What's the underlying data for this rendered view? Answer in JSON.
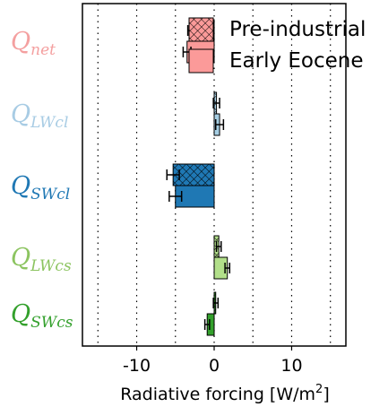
{
  "chart_data": {
    "type": "bar",
    "orientation": "horizontal",
    "title": "",
    "xlabel": "Radiative forcing [W/m",
    "xlabel_sup": "2",
    "xlabel_end": "]",
    "xlim": [
      -17,
      17
    ],
    "xticks": [
      -10,
      0,
      10
    ],
    "xtick_labels": [
      "-10",
      "0",
      "10"
    ],
    "grid_x": [
      -15,
      -10,
      -5,
      0,
      5,
      10,
      15
    ],
    "grid": "vertical dotted",
    "legend_position": "top-right",
    "categories": [
      {
        "main": "Q",
        "sub": "net",
        "color": "#f4a0a0"
      },
      {
        "main": "Q",
        "sub": "LWcl",
        "color": "#a8cce4"
      },
      {
        "main": "Q",
        "sub": "SWcl",
        "color": "#1f78b4"
      },
      {
        "main": "Q",
        "sub": "LWcs",
        "color": "#8cc460"
      },
      {
        "main": "Q",
        "sub": "SWcs",
        "color": "#33a02c"
      }
    ],
    "series": [
      {
        "name": "Pre-industrial",
        "hatch": "cross",
        "values": [
          -3.0,
          0.3,
          -5.3,
          0.6,
          0.2
        ],
        "errors": [
          0.4,
          0.4,
          0.8,
          0.3,
          0.3
        ]
      },
      {
        "name": "Early Eocene",
        "hatch": "none",
        "values": [
          -3.5,
          0.7,
          -5.0,
          1.7,
          -0.9
        ],
        "errors": [
          0.5,
          0.5,
          0.8,
          0.3,
          0.3
        ]
      }
    ],
    "bar_colors": {
      "net": "#fb9a99",
      "LWcl": "#a6cee3",
      "SWcl": "#1f78b4",
      "LWcs": "#b2df8a",
      "SWcs": "#33a02c"
    }
  }
}
